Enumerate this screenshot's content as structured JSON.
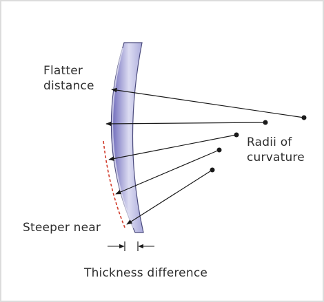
{
  "labels": {
    "flatter_distance": [
      "Flatter",
      "distance"
    ],
    "radii_of_curvature": [
      "Radii of",
      "curvature"
    ],
    "steeper_near": "Steeper near",
    "thickness_difference": "Thickness difference"
  },
  "colors": {
    "lens_fill_light": "#dcdcf2",
    "lens_fill_mid": "#a8a8da",
    "lens_fill_dark": "#6a66b8",
    "lens_edge": "#4a4a7c",
    "dashed_curve": "#d03a2a",
    "ray": "#1a1a1a",
    "frame_border": "#dcdcdc"
  }
}
